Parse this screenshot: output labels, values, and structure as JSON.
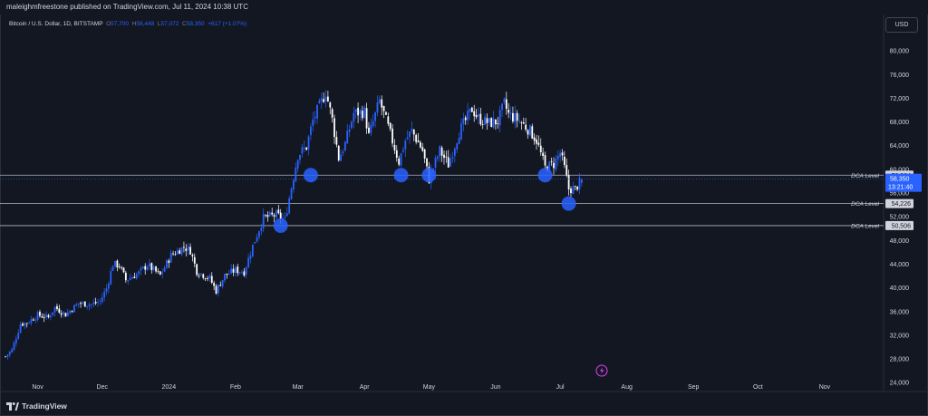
{
  "header": {
    "published": "maleighmfreestone published on TradingView.com, Jul 11, 2024 10:38 UTC"
  },
  "legend": {
    "symbol": "Bitcoin / U.S. Dollar, 1D, BITSTAMP",
    "o_label": "O",
    "o_value": "57,700",
    "h_label": "H",
    "h_value": "58,448",
    "l_label": "L",
    "l_value": "57,072",
    "c_label": "C",
    "c_value": "58,350",
    "change": "+617 (+1.07%)"
  },
  "currency_button": "USD",
  "footer": {
    "brand": "TradingView"
  },
  "colors": {
    "background": "#131722",
    "candle_up": "#2962ff",
    "candle_down": "#ffffff",
    "marker": "#2962ff",
    "level_line": "#b2b5be",
    "price_tag": "#2962ff"
  },
  "chart_data": {
    "type": "candlestick",
    "symbol": "BTCUSD",
    "interval": "1D",
    "ylim": [
      22500,
      84000
    ],
    "y_ticks": [
      24000,
      28000,
      32000,
      36000,
      40000,
      44000,
      48000,
      52000,
      56000,
      60000,
      64000,
      68000,
      72000,
      76000,
      80000
    ],
    "y_tick_labels": [
      "24,000",
      "28,000",
      "32,000",
      "36,000",
      "40,000",
      "44,000",
      "48,000",
      "52,000",
      "56,000",
      "60,000",
      "64,000",
      "68,000",
      "72,000",
      "76,000",
      "80,000"
    ],
    "x_start": "2023-10-17",
    "x_end": "2024-11-28",
    "x_ticks": [
      {
        "date": "2023-11-01",
        "label": "Nov"
      },
      {
        "date": "2023-12-01",
        "label": "Dec"
      },
      {
        "date": "2024-01-01",
        "label": "2024"
      },
      {
        "date": "2024-02-01",
        "label": "Feb"
      },
      {
        "date": "2024-03-01",
        "label": "Mar"
      },
      {
        "date": "2024-04-01",
        "label": "Apr"
      },
      {
        "date": "2024-05-01",
        "label": "May"
      },
      {
        "date": "2024-06-01",
        "label": "Jun"
      },
      {
        "date": "2024-07-01",
        "label": "Jul"
      },
      {
        "date": "2024-08-01",
        "label": "Aug"
      },
      {
        "date": "2024-09-01",
        "label": "Sep"
      },
      {
        "date": "2024-10-01",
        "label": "Oct"
      },
      {
        "date": "2024-11-01",
        "label": "Nov"
      }
    ],
    "close_path": [
      [
        "2023-10-17",
        28400
      ],
      [
        "2023-10-20",
        29500
      ],
      [
        "2023-10-24",
        33900
      ],
      [
        "2023-10-27",
        34100
      ],
      [
        "2023-11-01",
        35400
      ],
      [
        "2023-11-06",
        35000
      ],
      [
        "2023-11-09",
        36700
      ],
      [
        "2023-11-14",
        35500
      ],
      [
        "2023-11-20",
        37400
      ],
      [
        "2023-11-26",
        37200
      ],
      [
        "2023-11-30",
        37700
      ],
      [
        "2023-12-03",
        39900
      ],
      [
        "2023-12-06",
        44000
      ],
      [
        "2023-12-09",
        43800
      ],
      [
        "2023-12-12",
        41300
      ],
      [
        "2023-12-18",
        42500
      ],
      [
        "2023-12-22",
        43900
      ],
      [
        "2023-12-28",
        42100
      ],
      [
        "2024-01-02",
        45500
      ],
      [
        "2024-01-08",
        46900
      ],
      [
        "2024-01-11",
        46300
      ],
      [
        "2024-01-14",
        42800
      ],
      [
        "2024-01-20",
        41600
      ],
      [
        "2024-01-23",
        39500
      ],
      [
        "2024-01-27",
        42100
      ],
      [
        "2024-02-01",
        43000
      ],
      [
        "2024-02-05",
        42700
      ],
      [
        "2024-02-09",
        47100
      ],
      [
        "2024-02-14",
        51800
      ],
      [
        "2024-02-20",
        52300
      ],
      [
        "2024-02-24",
        51500
      ],
      [
        "2024-02-27",
        57000
      ],
      [
        "2024-03-01",
        62400
      ],
      [
        "2024-03-05",
        63800
      ],
      [
        "2024-03-08",
        68300
      ],
      [
        "2024-03-12",
        71400
      ],
      [
        "2024-03-14",
        73100
      ],
      [
        "2024-03-17",
        68400
      ],
      [
        "2024-03-20",
        61900
      ],
      [
        "2024-03-23",
        64300
      ],
      [
        "2024-03-27",
        69500
      ],
      [
        "2024-04-01",
        69700
      ],
      [
        "2024-04-03",
        65600
      ],
      [
        "2024-04-08",
        71600
      ],
      [
        "2024-04-12",
        67100
      ],
      [
        "2024-04-17",
        61300
      ],
      [
        "2024-04-20",
        64900
      ],
      [
        "2024-04-23",
        66500
      ],
      [
        "2024-04-28",
        63200
      ],
      [
        "2024-05-01",
        58300
      ],
      [
        "2024-05-06",
        63200
      ],
      [
        "2024-05-10",
        60800
      ],
      [
        "2024-05-15",
        66300
      ],
      [
        "2024-05-21",
        70200
      ],
      [
        "2024-05-24",
        68600
      ],
      [
        "2024-05-29",
        67800
      ],
      [
        "2024-06-02",
        68100
      ],
      [
        "2024-06-05",
        71100
      ],
      [
        "2024-06-07",
        69300
      ],
      [
        "2024-06-12",
        68200
      ],
      [
        "2024-06-17",
        66500
      ],
      [
        "2024-06-20",
        64900
      ],
      [
        "2024-06-24",
        60300
      ],
      [
        "2024-06-28",
        60900
      ],
      [
        "2024-07-01",
        62800
      ],
      [
        "2024-07-03",
        60200
      ],
      [
        "2024-07-05",
        56700
      ],
      [
        "2024-07-08",
        56700
      ],
      [
        "2024-07-11",
        58350
      ]
    ],
    "dca_levels": [
      {
        "label": "DCA Level",
        "value": 59024,
        "value_label": "59,024"
      },
      {
        "label": "DCA Level",
        "value": 54226,
        "value_label": "54,226"
      },
      {
        "label": "DCA Level",
        "value": 50506,
        "value_label": "50,506"
      }
    ],
    "markers": [
      {
        "date": "2024-02-22",
        "price": 50506
      },
      {
        "date": "2024-03-07",
        "price": 59024
      },
      {
        "date": "2024-04-18",
        "price": 59024
      },
      {
        "date": "2024-05-01",
        "price": 59024
      },
      {
        "date": "2024-06-24",
        "price": 59024
      },
      {
        "date": "2024-07-05",
        "price": 54226
      }
    ],
    "last_price": {
      "value": 58350,
      "value_label": "58,350",
      "countdown": "13:21:40"
    },
    "ohlc_last": {
      "open": 57700,
      "high": 58448,
      "low": 57072,
      "close": 58350
    }
  }
}
